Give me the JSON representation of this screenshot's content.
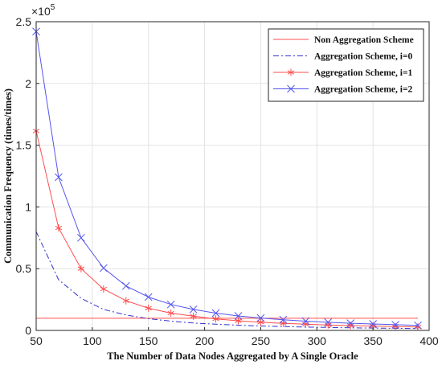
{
  "chart_data": {
    "type": "line",
    "title": "",
    "xlabel": "The Number of Data Nodes Aggregated by A Single Oracle",
    "ylabel": "Communication Frequency (times/times)",
    "y_exponent_label": "×10",
    "y_exponent_power": "5",
    "xlim": [
      50,
      400
    ],
    "ylim": [
      0,
      2.5
    ],
    "y_scale_factor": 100000,
    "x_ticks": [
      50,
      100,
      150,
      200,
      250,
      300,
      350,
      400
    ],
    "y_ticks": [
      0,
      0.5,
      1,
      1.5,
      2,
      2.5
    ],
    "x_tick_labels": [
      "50",
      "100",
      "150",
      "200",
      "250",
      "300",
      "350",
      "400"
    ],
    "y_tick_labels": [
      "0",
      "0.5",
      "1",
      "1.5",
      "2",
      "2.5"
    ],
    "grid": true,
    "legend_position": "top-right",
    "x": [
      50,
      70,
      90,
      110,
      130,
      150,
      170,
      190,
      210,
      230,
      250,
      270,
      290,
      310,
      330,
      350,
      370,
      390
    ],
    "series": [
      {
        "name": "Non Aggregation Scheme",
        "color": "#ff4d4d",
        "line_style": "solid",
        "marker": "none",
        "values": [
          0.098,
          0.098,
          0.098,
          0.098,
          0.098,
          0.098,
          0.098,
          0.098,
          0.098,
          0.098,
          0.098,
          0.098,
          0.098,
          0.098,
          0.098,
          0.098,
          0.098,
          0.098
        ]
      },
      {
        "name": "Aggregation Scheme, i=0",
        "color": "#3333cc",
        "line_style": "dashdot",
        "marker": "none",
        "values": [
          0.8,
          0.41,
          0.26,
          0.17,
          0.125,
          0.095,
          0.075,
          0.06,
          0.05,
          0.042,
          0.036,
          0.031,
          0.027,
          0.024,
          0.021,
          0.019,
          0.017,
          0.015
        ]
      },
      {
        "name": "Aggregation Scheme, i=1",
        "color": "#ff4d4d",
        "line_style": "solid",
        "marker": "asterisk",
        "values": [
          1.615,
          0.83,
          0.5,
          0.335,
          0.24,
          0.18,
          0.14,
          0.115,
          0.093,
          0.078,
          0.066,
          0.057,
          0.05,
          0.044,
          0.039,
          0.035,
          0.031,
          0.028
        ]
      },
      {
        "name": "Aggregation Scheme, i=2",
        "color": "#5555ee",
        "line_style": "solid",
        "marker": "x",
        "values": [
          2.42,
          1.24,
          0.75,
          0.505,
          0.36,
          0.27,
          0.21,
          0.17,
          0.14,
          0.117,
          0.1,
          0.086,
          0.075,
          0.066,
          0.058,
          0.052,
          0.046,
          0.041
        ]
      }
    ]
  }
}
